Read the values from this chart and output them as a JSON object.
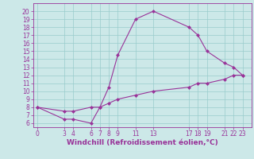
{
  "xlabel": "Windchill (Refroidissement éolien,°C)",
  "bg_color": "#cce8e8",
  "line_color": "#993399",
  "xlim": [
    -0.5,
    24
  ],
  "ylim": [
    5.5,
    21
  ],
  "xticks": [
    0,
    3,
    4,
    6,
    7,
    8,
    9,
    11,
    13,
    17,
    18,
    19,
    21,
    22,
    23
  ],
  "yticks": [
    6,
    7,
    8,
    9,
    10,
    11,
    12,
    13,
    14,
    15,
    16,
    17,
    18,
    19,
    20
  ],
  "curve1_x": [
    0,
    3,
    4,
    6,
    7,
    8,
    9,
    11,
    13,
    17,
    18,
    19,
    21,
    22,
    23
  ],
  "curve1_y": [
    8,
    6.5,
    6.5,
    6,
    8,
    10.5,
    14.5,
    19,
    20,
    18,
    17,
    15,
    13.5,
    13,
    12
  ],
  "curve2_x": [
    0,
    3,
    4,
    6,
    7,
    8,
    9,
    11,
    13,
    17,
    18,
    19,
    21,
    22,
    23
  ],
  "curve2_y": [
    8,
    7.5,
    7.5,
    8,
    8,
    8.5,
    9,
    9.5,
    10,
    10.5,
    11,
    11,
    11.5,
    12,
    12
  ],
  "grid_color": "#99cccc",
  "tick_fontsize": 5.5,
  "xlabel_fontsize": 6.5,
  "marker_size": 2.5,
  "linewidth": 0.8
}
